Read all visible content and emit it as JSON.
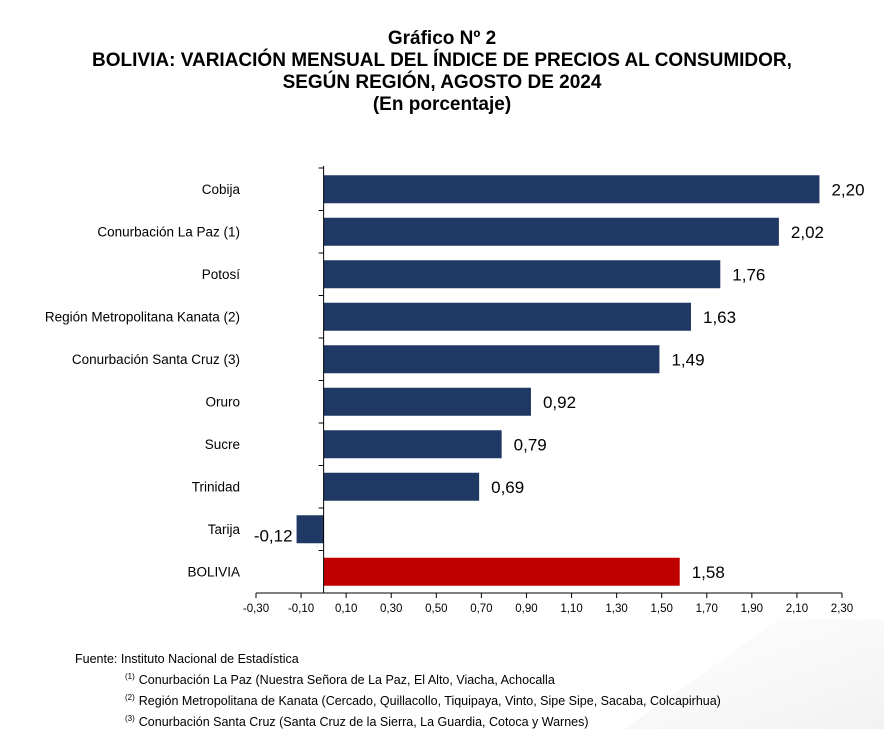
{
  "titles": {
    "line1": "Gráfico Nº 2",
    "line2": "BOLIVIA: VARIACIÓN MENSUAL DEL ÍNDICE DE PRECIOS AL CONSUMIDOR,",
    "line3": "SEGÚN REGIÓN, AGOSTO DE 2024",
    "line4": "(En porcentaje)"
  },
  "chart_data": {
    "type": "bar",
    "orientation": "horizontal",
    "categories": [
      "Cobija",
      "Conurbación La Paz (1)",
      "Potosí",
      "Región Metropolitana Kanata (2)",
      "Conurbación Santa Cruz (3)",
      "Oruro",
      "Sucre",
      "Trinidad",
      "Tarija",
      "BOLIVIA"
    ],
    "values": [
      2.2,
      2.02,
      1.76,
      1.63,
      1.49,
      0.92,
      0.79,
      0.69,
      -0.12,
      1.58
    ],
    "value_labels": [
      "2,20",
      "2,02",
      "1,76",
      "1,63",
      "1,49",
      "0,92",
      "0,79",
      "0,69",
      "-0,12",
      "1,58"
    ],
    "xlim": [
      -0.3,
      2.3
    ],
    "ticks": [
      -0.3,
      -0.1,
      0.1,
      0.3,
      0.5,
      0.7,
      0.9,
      1.1,
      1.3,
      1.5,
      1.7,
      1.9,
      2.1,
      2.3
    ],
    "tick_labels": [
      "-0,30",
      "-0,10",
      "0,10",
      "0,30",
      "0,50",
      "0,70",
      "0,90",
      "1,10",
      "1,30",
      "1,50",
      "1,70",
      "1,90",
      "2,10",
      "2,30"
    ],
    "grid": false,
    "legend": "none",
    "colors": {
      "bar": "#1f3864",
      "highlight": "#c00000"
    },
    "highlight_category": "BOLIVIA"
  },
  "notes": {
    "source": "Fuente: Instituto Nacional de Estadística",
    "footnotes": [
      {
        "mark": "(1)",
        "text": "Conurbación La Paz (Nuestra Señora de La Paz, El Alto, Viacha, Achocalla"
      },
      {
        "mark": "(2)",
        "text": "Región Metropolitana de Kanata (Cercado, Quillacollo, Tiquipaya, Vinto, Sipe Sipe, Sacaba, Colcapirhua)"
      },
      {
        "mark": "(3)",
        "text": "Conurbación Santa Cruz (Santa Cruz de la Sierra, La Guardia, Cotoca y Warnes)"
      }
    ]
  }
}
